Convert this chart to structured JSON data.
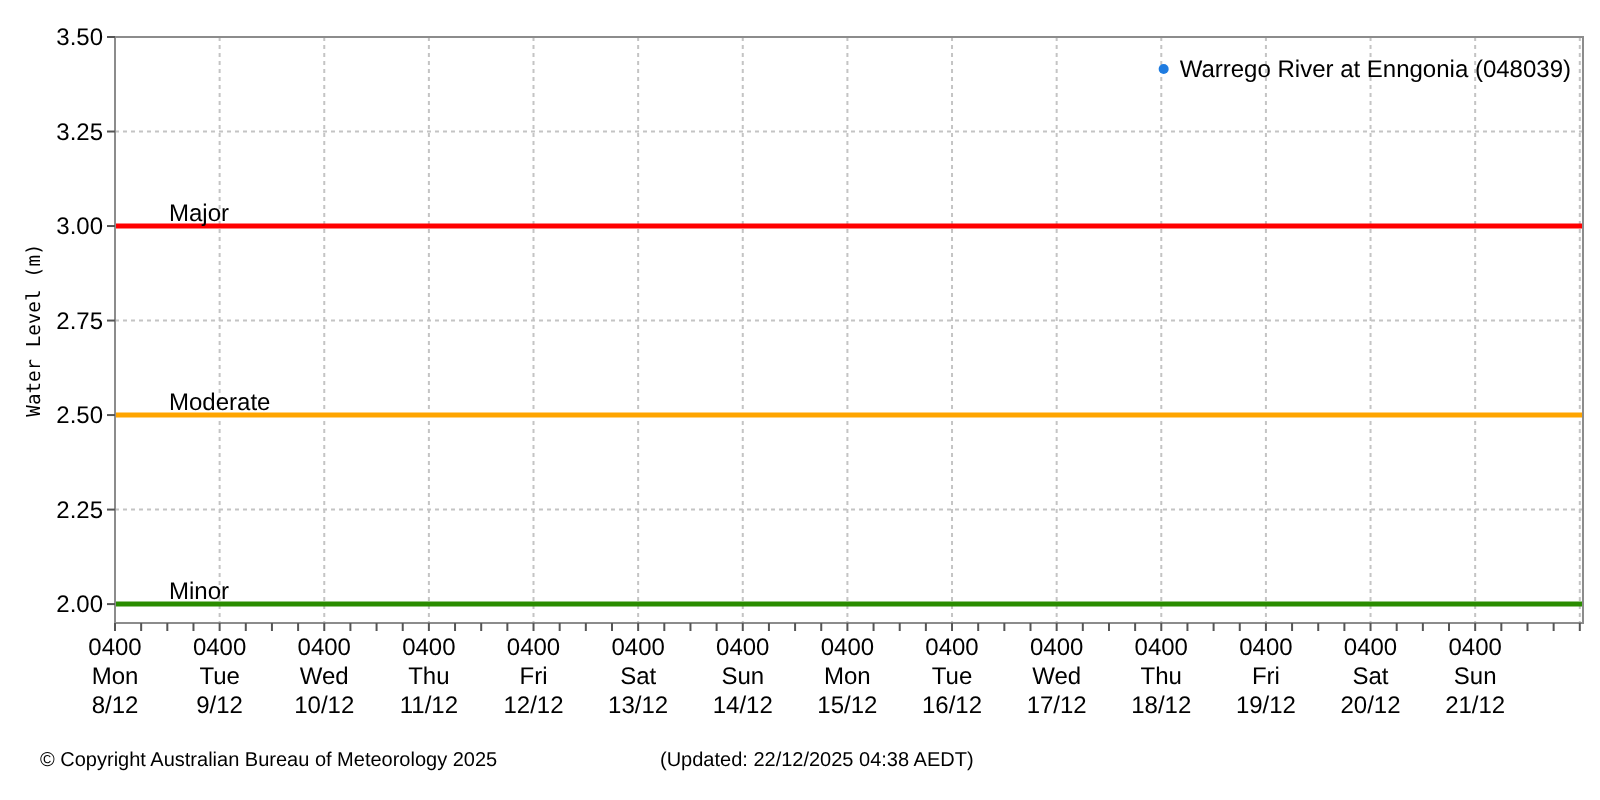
{
  "chart_data": {
    "type": "scatter",
    "ylabel": "Water Level (m)",
    "annotations": [
      "© Copyright Australian Bureau of Meteorology 2025",
      "(Updated: 22/12/2025 04:38 AEDT)"
    ],
    "categories": [
      "0400\nMon\n8/12",
      "0400\nTue\n9/12",
      "0400\nWed\n10/12",
      "0400\nThu\n11/12",
      "0400\nFri\n12/12",
      "0400\nSat\n13/12",
      "0400\nSun\n14/12",
      "0400\nMon\n15/12",
      "0400\nTue\n16/12",
      "0400\nWed\n17/12",
      "0400\nThu\n18/12",
      "0400\nFri\n19/12",
      "0400\nSat\n20/12",
      "0400\nSun\n21/12",
      null
    ],
    "series": [
      {
        "name": "Warrego River at Enngonia (048039)",
        "color": "#1e7be0",
        "values": [
          null,
          null,
          null,
          null,
          null,
          null,
          null,
          null,
          null,
          null,
          null,
          null,
          null,
          null,
          null
        ]
      }
    ],
    "marker": "circle",
    "legend": "top right",
    "grid": true,
    "ylim": [
      1.95,
      3.5
    ],
    "yticks": [
      {
        "value": 2,
        "label": "2.00"
      },
      {
        "value": 2.25,
        "label": "2.25"
      },
      {
        "value": 2.5,
        "label": "2.50"
      },
      {
        "value": 2.75,
        "label": "2.75"
      },
      {
        "value": 3,
        "label": "3.00"
      },
      {
        "value": 3.25,
        "label": "3.25"
      },
      {
        "value": 3.5,
        "label": "3.50"
      }
    ],
    "ref_lines": [
      {
        "axis": "y",
        "value": 3,
        "label": "Major",
        "color": "#ff0000"
      },
      {
        "axis": "y",
        "value": 2.5,
        "label": "Moderate",
        "color": "#ffa500"
      },
      {
        "axis": "y",
        "value": 2,
        "label": "Minor",
        "color": "#2a8c00"
      }
    ]
  }
}
